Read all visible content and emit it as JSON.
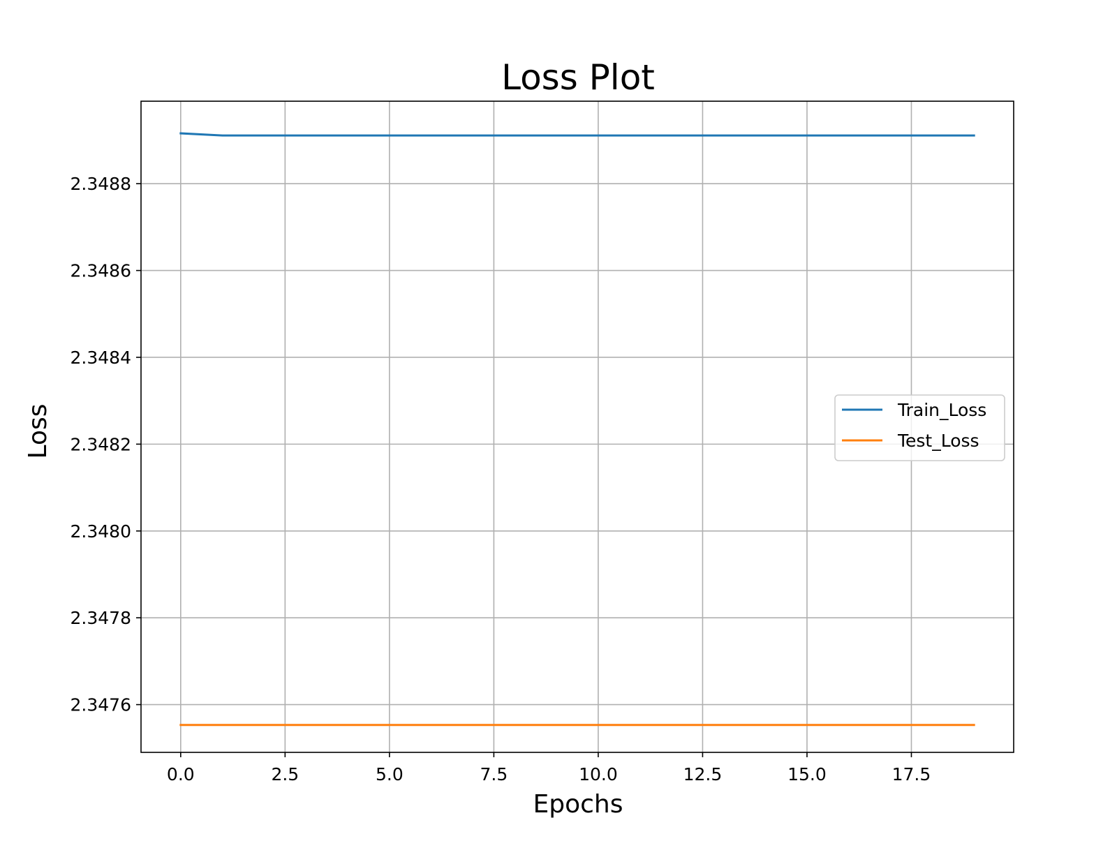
{
  "chart_data": {
    "type": "line",
    "title": "Loss Plot",
    "xlabel": "Epochs",
    "ylabel": "Loss",
    "x": [
      0,
      1,
      2,
      3,
      4,
      5,
      6,
      7,
      8,
      9,
      10,
      11,
      12,
      13,
      14,
      15,
      16,
      17,
      18,
      19
    ],
    "series": [
      {
        "name": "Train_Loss",
        "color": "#1f77b4",
        "values": [
          2.348916,
          2.348911,
          2.348911,
          2.348911,
          2.348911,
          2.348911,
          2.348911,
          2.348911,
          2.348911,
          2.348911,
          2.348911,
          2.348911,
          2.348911,
          2.348911,
          2.348911,
          2.348911,
          2.348911,
          2.348911,
          2.348911,
          2.348911
        ]
      },
      {
        "name": "Test_Loss",
        "color": "#ff7f0e",
        "values": [
          2.347553,
          2.347553,
          2.347553,
          2.347553,
          2.347553,
          2.347553,
          2.347553,
          2.347553,
          2.347553,
          2.347553,
          2.347553,
          2.347553,
          2.347553,
          2.347553,
          2.347553,
          2.347553,
          2.347553,
          2.347553,
          2.347553,
          2.347553
        ]
      }
    ],
    "xlim": [
      -0.95,
      19.95
    ],
    "ylim": [
      2.34749,
      2.34899
    ],
    "xticks": [
      0.0,
      2.5,
      5.0,
      7.5,
      10.0,
      12.5,
      15.0,
      17.5
    ],
    "xtick_labels": [
      "0.0",
      "2.5",
      "5.0",
      "7.5",
      "10.0",
      "12.5",
      "15.0",
      "17.5"
    ],
    "yticks": [
      2.3476,
      2.3478,
      2.348,
      2.3482,
      2.3484,
      2.3486,
      2.3488
    ],
    "ytick_labels": [
      "2.3476",
      "2.3478",
      "2.3480",
      "2.3482",
      "2.3484",
      "2.3486",
      "2.3488"
    ],
    "grid": true,
    "legend_position": "center-right"
  }
}
